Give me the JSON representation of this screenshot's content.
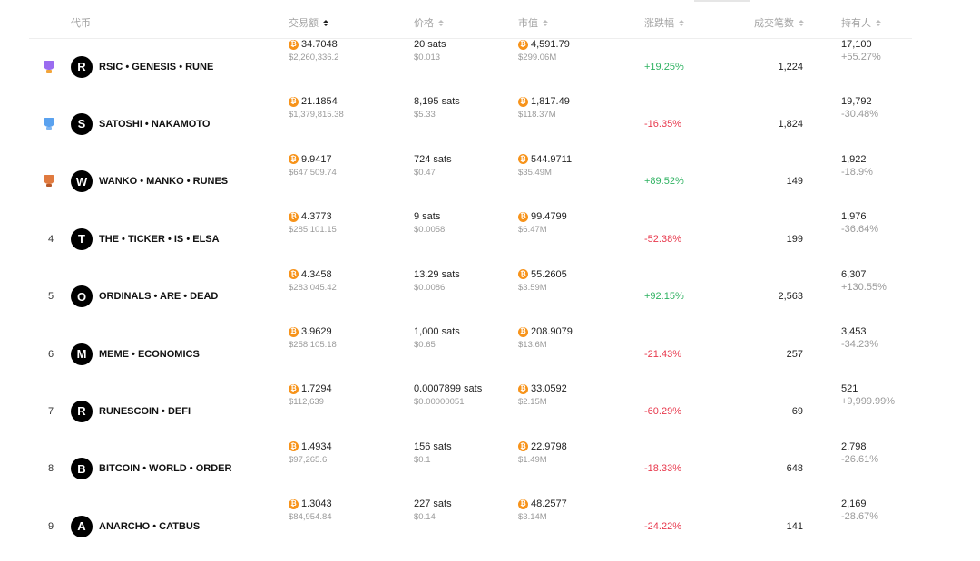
{
  "header": {
    "coin": "代币",
    "volume": "交易额",
    "price": "价格",
    "market_cap": "市值",
    "change": "涨跌幅",
    "trades": "成交笔数",
    "holders": "持有人"
  },
  "colors": {
    "positive": "#2eb261",
    "negative": "#e8394d",
    "btc": "#f7931a"
  },
  "rows": [
    {
      "rank": "",
      "badge": "rank-1-medal-icon",
      "initial": "R",
      "name": "RSIC • GENESIS • RUNE",
      "volume": "34.7048",
      "volume_usd": "$2,260,336.2",
      "price": "20 sats",
      "price_usd": "$0.013",
      "market_cap": "4,591.79",
      "market_cap_usd": "$299.06M",
      "change": "+19.25%",
      "change_dir": "pos",
      "trades": "1,224",
      "holders": "17,100",
      "holders_change": "+55.27%",
      "holders_dir": "pos"
    },
    {
      "rank": "",
      "badge": "rank-2-medal-icon",
      "initial": "S",
      "name": "SATOSHI • NAKAMOTO",
      "volume": "21.1854",
      "volume_usd": "$1,379,815.38",
      "price": "8,195 sats",
      "price_usd": "$5.33",
      "market_cap": "1,817.49",
      "market_cap_usd": "$118.37M",
      "change": "-16.35%",
      "change_dir": "neg",
      "trades": "1,824",
      "holders": "19,792",
      "holders_change": "-30.48%",
      "holders_dir": "neg"
    },
    {
      "rank": "",
      "badge": "rank-3-medal-icon",
      "initial": "W",
      "name": "WANKO • MANKO • RUNES",
      "volume": "9.9417",
      "volume_usd": "$647,509.74",
      "price": "724 sats",
      "price_usd": "$0.47",
      "market_cap": "544.9711",
      "market_cap_usd": "$35.49M",
      "change": "+89.52%",
      "change_dir": "pos",
      "trades": "149",
      "holders": "1,922",
      "holders_change": "-18.9%",
      "holders_dir": "neg"
    },
    {
      "rank": "4",
      "badge": "",
      "initial": "T",
      "name": "THE • TICKER • IS • ELSA",
      "volume": "4.3773",
      "volume_usd": "$285,101.15",
      "price": "9 sats",
      "price_usd": "$0.0058",
      "market_cap": "99.4799",
      "market_cap_usd": "$6.47M",
      "change": "-52.38%",
      "change_dir": "neg",
      "trades": "199",
      "holders": "1,976",
      "holders_change": "-36.64%",
      "holders_dir": "neg"
    },
    {
      "rank": "5",
      "badge": "",
      "initial": "O",
      "name": "ORDINALS • ARE • DEAD",
      "volume": "4.3458",
      "volume_usd": "$283,045.42",
      "price": "13.29 sats",
      "price_usd": "$0.0086",
      "market_cap": "55.2605",
      "market_cap_usd": "$3.59M",
      "change": "+92.15%",
      "change_dir": "pos",
      "trades": "2,563",
      "holders": "6,307",
      "holders_change": "+130.55%",
      "holders_dir": "pos"
    },
    {
      "rank": "6",
      "badge": "",
      "initial": "M",
      "name": "MEME • ECONOMICS",
      "volume": "3.9629",
      "volume_usd": "$258,105.18",
      "price": "1,000 sats",
      "price_usd": "$0.65",
      "market_cap": "208.9079",
      "market_cap_usd": "$13.6M",
      "change": "-21.43%",
      "change_dir": "neg",
      "trades": "257",
      "holders": "3,453",
      "holders_change": "-34.23%",
      "holders_dir": "neg"
    },
    {
      "rank": "7",
      "badge": "",
      "initial": "R",
      "name": "RUNESCOIN • DEFI",
      "volume": "1.7294",
      "volume_usd": "$112,639",
      "price": "0.0007899 sats",
      "price_usd": "$0.00000051",
      "market_cap": "33.0592",
      "market_cap_usd": "$2.15M",
      "change": "-60.29%",
      "change_dir": "neg",
      "trades": "69",
      "holders": "521",
      "holders_change": "+9,999.99%",
      "holders_dir": "pos"
    },
    {
      "rank": "8",
      "badge": "",
      "initial": "B",
      "name": "BITCOIN • WORLD • ORDER",
      "volume": "1.4934",
      "volume_usd": "$97,265.6",
      "price": "156 sats",
      "price_usd": "$0.1",
      "market_cap": "22.9798",
      "market_cap_usd": "$1.49M",
      "change": "-18.33%",
      "change_dir": "neg",
      "trades": "648",
      "holders": "2,798",
      "holders_change": "-26.61%",
      "holders_dir": "neg"
    },
    {
      "rank": "9",
      "badge": "",
      "initial": "A",
      "name": "ANARCHO • CATBUS",
      "volume": "1.3043",
      "volume_usd": "$84,954.84",
      "price": "227 sats",
      "price_usd": "$0.14",
      "market_cap": "48.2577",
      "market_cap_usd": "$3.14M",
      "change": "-24.22%",
      "change_dir": "neg",
      "trades": "141",
      "holders": "2,169",
      "holders_change": "-28.67%",
      "holders_dir": "neg"
    }
  ]
}
